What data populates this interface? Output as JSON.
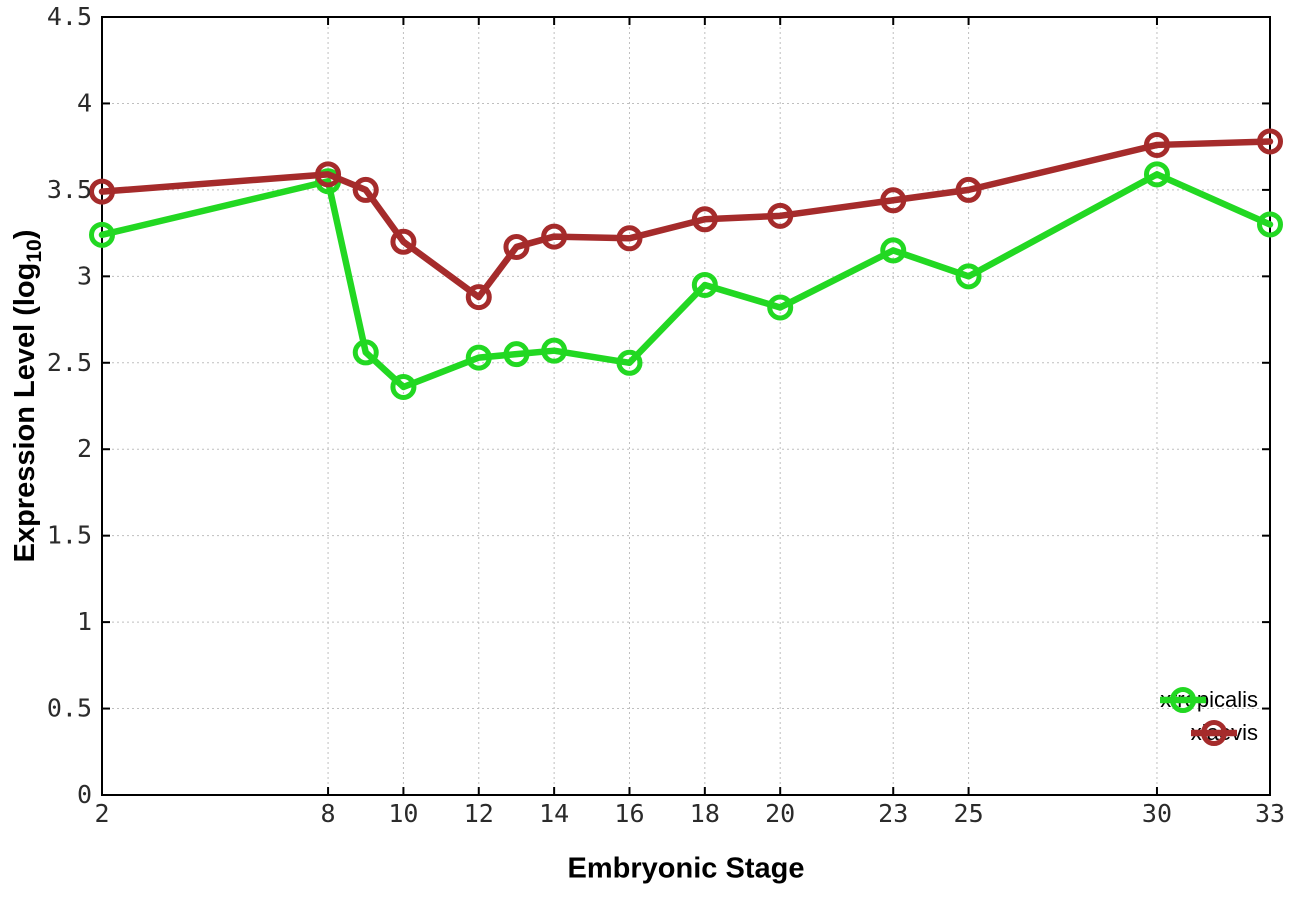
{
  "chart_data": {
    "type": "line",
    "title": "",
    "xlabel": "Embryonic Stage",
    "ylabel_main": "Expression Level (log",
    "ylabel_sub": "10",
    "ylabel_end": ")",
    "x": [
      2,
      8,
      9,
      10,
      12,
      13,
      14,
      16,
      18,
      20,
      23,
      25,
      30,
      33
    ],
    "series": [
      {
        "name": "xtropicalis",
        "color": "#22d822",
        "values": [
          3.24,
          3.55,
          2.56,
          2.36,
          2.53,
          2.55,
          2.57,
          2.5,
          2.95,
          2.82,
          3.15,
          3.0,
          3.59,
          3.3
        ]
      },
      {
        "name": "xlaevis",
        "color": "#a52b2b",
        "values": [
          3.49,
          3.59,
          3.5,
          3.2,
          2.88,
          3.17,
          3.23,
          3.22,
          3.33,
          3.35,
          3.44,
          3.5,
          3.76,
          3.78
        ]
      }
    ],
    "xlim": [
      2,
      33
    ],
    "ylim": [
      0,
      4.5
    ],
    "xticks": [
      2,
      8,
      10,
      12,
      14,
      16,
      18,
      20,
      23,
      25,
      30,
      33
    ],
    "xtick_labels": [
      "2",
      "8",
      "10",
      "12",
      "14",
      "16",
      "18",
      "20",
      "23",
      "25",
      "30",
      "33"
    ],
    "yticks": [
      0,
      0.5,
      1,
      1.5,
      2,
      2.5,
      3,
      3.5,
      4,
      4.5
    ],
    "ytick_labels": [
      "0",
      "0.5",
      "1",
      "1.5",
      "2",
      "2.5",
      "3",
      "3.5",
      "4",
      "4.5"
    ],
    "grid": true,
    "legend_position": "bottom-right",
    "colors": {
      "background": "#ffffff",
      "axis": "#000000",
      "grid": "#bfbfbf",
      "tick_text": "#2b2b2b"
    }
  }
}
